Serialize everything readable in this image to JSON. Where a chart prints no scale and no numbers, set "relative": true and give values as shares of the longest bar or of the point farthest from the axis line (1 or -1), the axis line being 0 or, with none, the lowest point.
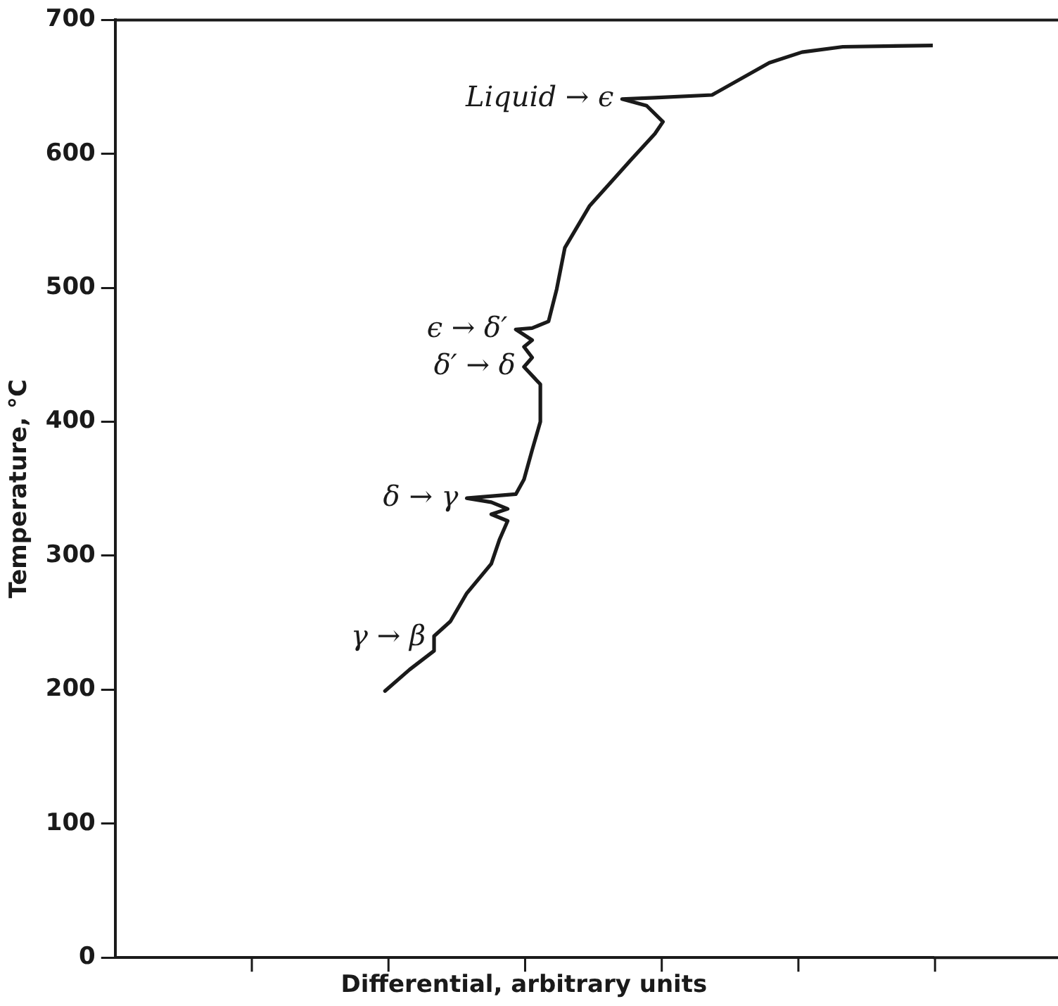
{
  "chart_data": {
    "type": "line",
    "orientation": "horizontal",
    "relative": true,
    "xlabel": "Differential, arbitrary units",
    "ylabel": "Temperature, °C",
    "x": [
      199,
      215,
      229,
      239,
      240,
      251,
      272,
      294,
      312,
      326,
      331,
      335,
      340,
      343,
      346,
      357,
      379,
      400,
      428,
      441,
      448,
      456,
      461,
      469,
      470,
      475,
      499,
      530,
      561,
      595,
      615,
      624,
      636,
      641,
      642,
      644,
      668,
      676,
      680,
      681
    ],
    "series": [
      {
        "color": "#1a1a1a",
        "values": [
          0.33,
          0.36,
          0.39,
          0.39,
          0.39,
          0.41,
          0.43,
          0.46,
          0.47,
          0.48,
          0.46,
          0.48,
          0.46,
          0.43,
          0.49,
          0.5,
          0.51,
          0.52,
          0.52,
          0.5,
          0.51,
          0.5,
          0.51,
          0.49,
          0.51,
          0.53,
          0.54,
          0.55,
          0.58,
          0.63,
          0.66,
          0.67,
          0.65,
          0.62,
          0.66,
          0.73,
          0.8,
          0.84,
          0.89,
          1
        ]
      }
    ],
    "ylim": [
      0,
      700
    ],
    "yticks": [
      0,
      100,
      200,
      300,
      400,
      500,
      600,
      700
    ],
    "tick_labels": "y",
    "grid": false,
    "legend": false,
    "marker": "none",
    "line_style": "solid",
    "annotations": [
      {
        "text": "Liquid → ϵ",
        "x": 0.62,
        "y": 641
      },
      {
        "text": "ϵ → δ′",
        "x": 0.49,
        "y": 469
      },
      {
        "text": "δ′ → δ",
        "x": 0.5,
        "y": 441
      },
      {
        "text": "δ → γ",
        "x": 0.43,
        "y": 343
      },
      {
        "text": "γ → β",
        "x": 0.39,
        "y": 239
      }
    ]
  }
}
